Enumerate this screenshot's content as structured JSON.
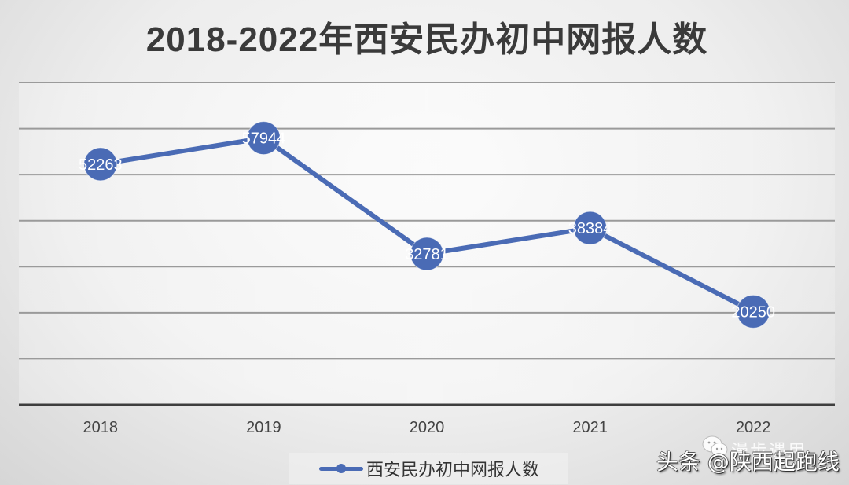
{
  "title": "2018-2022年西安民办初中网报人数",
  "legend": {
    "label": "西安民办初中网报人数",
    "color": "#4472c4"
  },
  "watermark": {
    "text": "头条 @陕西起跑线",
    "sub_text": "漫步遇用",
    "icon": "wechat-icon"
  },
  "colors": {
    "series": "#4a6bb5",
    "gridline": "#9a9a9a",
    "axis": "#444444",
    "label_text": "#ffffff"
  },
  "chart_data": {
    "type": "line",
    "title": "2018-2022年西安民办初中网报人数",
    "categories": [
      "2018",
      "2019",
      "2020",
      "2021",
      "2022"
    ],
    "series": [
      {
        "name": "西安民办初中网报人数",
        "values": [
          52263,
          57944,
          32781,
          38384,
          20250
        ]
      }
    ],
    "data_labels": [
      "52263",
      "57944",
      "32781",
      "38384",
      "20250"
    ],
    "xlabel": "",
    "ylabel": "",
    "ylim": [
      0,
      70000
    ],
    "y_ticks_visible": false,
    "grid": true,
    "legend_position": "bottom",
    "marker": "circle"
  }
}
